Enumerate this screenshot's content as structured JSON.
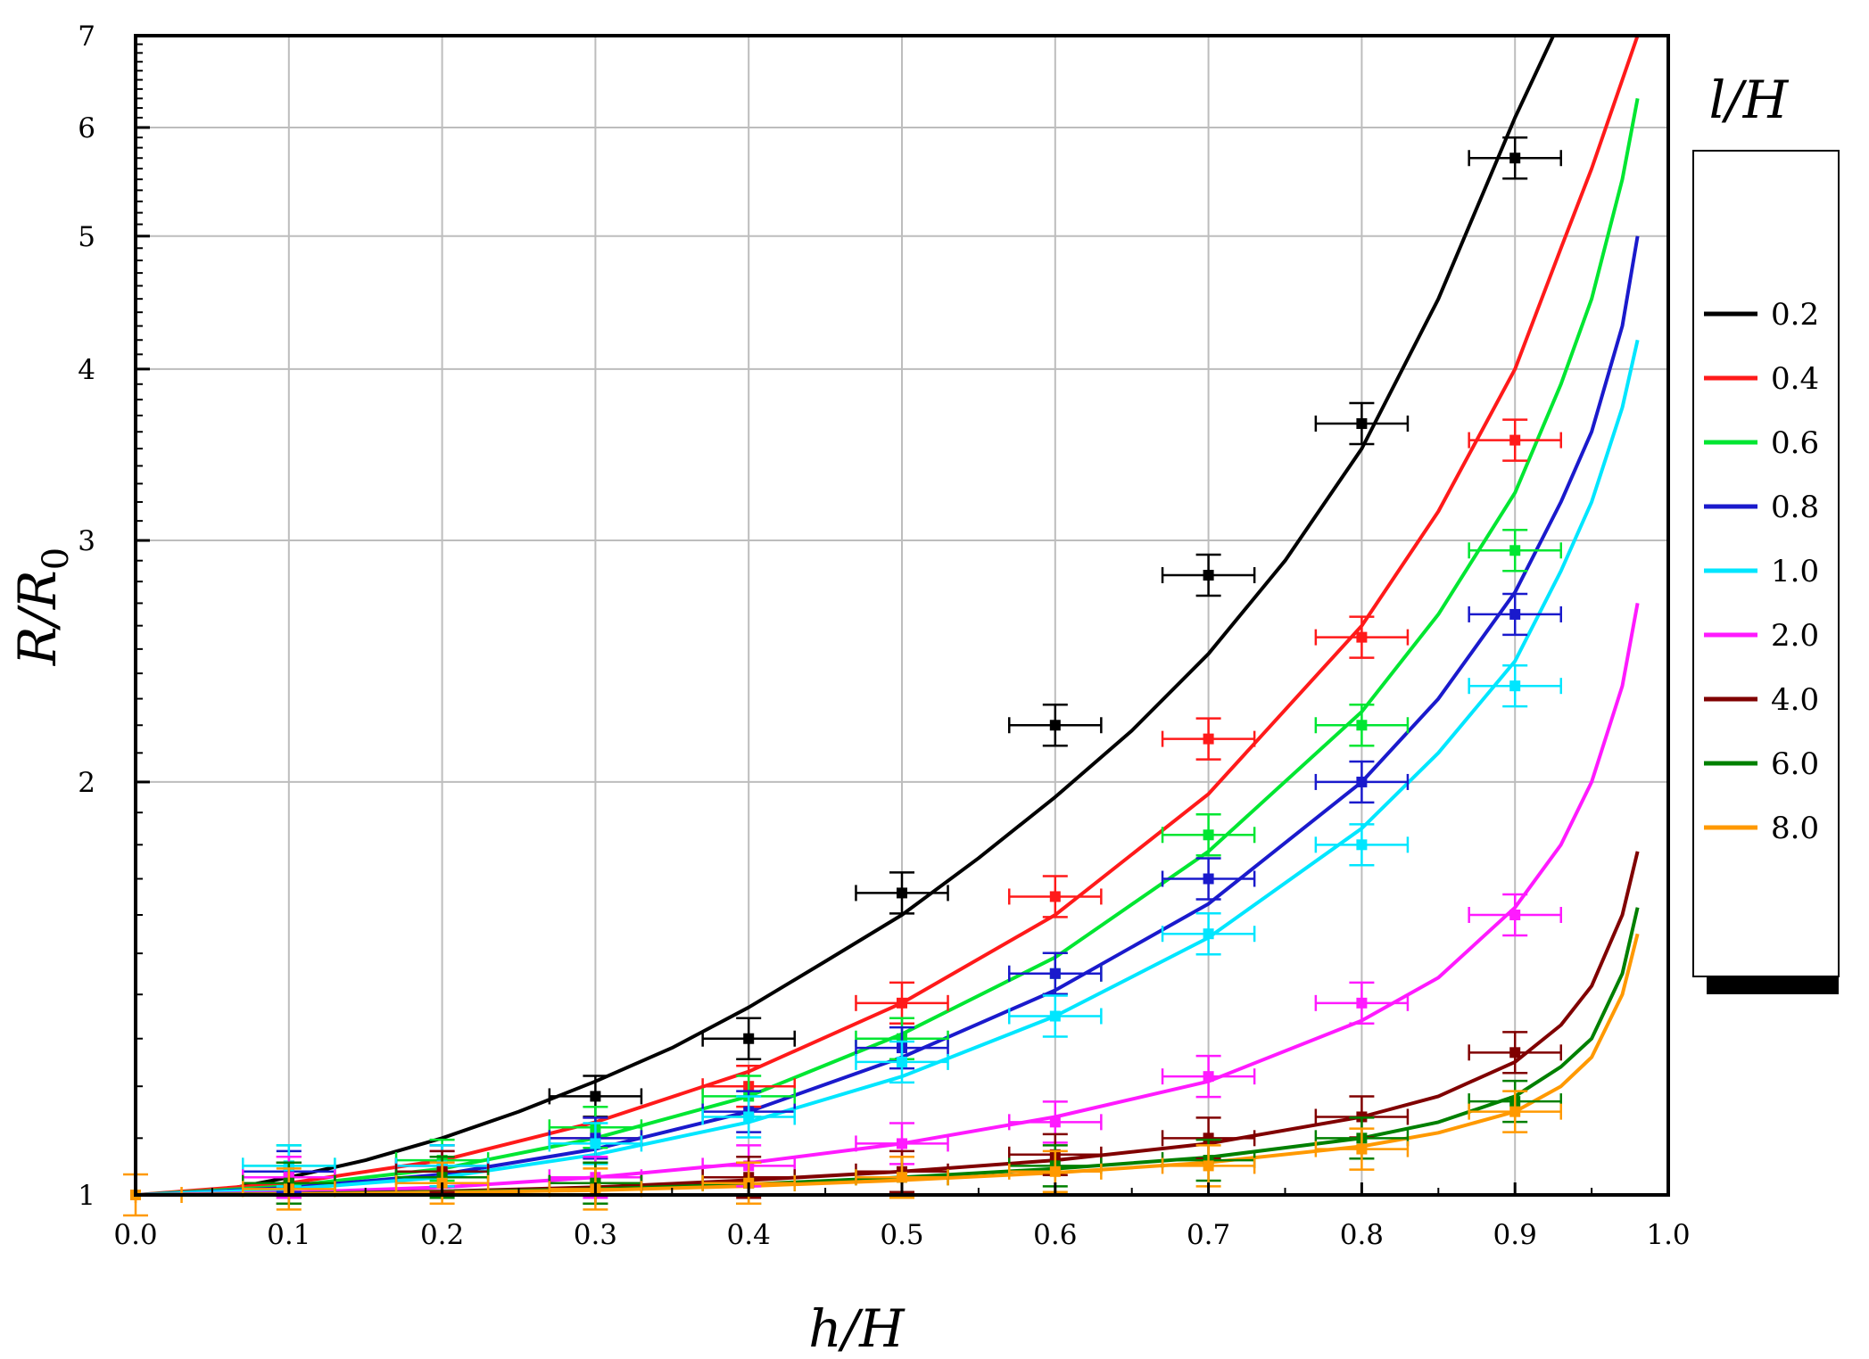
{
  "chart_data": {
    "type": "line",
    "xlabel_main": "h/H",
    "ylabel_main": "R/R",
    "ylabel_sub": "0",
    "legend_title": "l/H",
    "xlim": [
      0.0,
      1.0
    ],
    "ylim": [
      1,
      7
    ],
    "y_scale": "log",
    "grid": true,
    "legend_position": "right",
    "x_ticks": [
      "0.0",
      "0.1",
      "0.2",
      "0.3",
      "0.4",
      "0.5",
      "0.6",
      "0.7",
      "0.8",
      "0.9",
      "1.0"
    ],
    "y_ticks": [
      {
        "value": 1,
        "label": "1"
      },
      {
        "value": 2,
        "label": "2"
      },
      {
        "value": 3,
        "label": "3"
      },
      {
        "value": 4,
        "label": "4"
      },
      {
        "value": 5,
        "label": "5"
      },
      {
        "value": 6,
        "label": "6"
      },
      {
        "value": 7,
        "label": "7"
      }
    ],
    "x_error": 0.03,
    "series": [
      {
        "name": "0.2",
        "color": "#000000",
        "curve": {
          "x": [
            0,
            0.05,
            0.1,
            0.15,
            0.2,
            0.25,
            0.3,
            0.35,
            0.4,
            0.45,
            0.5,
            0.55,
            0.6,
            0.65,
            0.7,
            0.75,
            0.8,
            0.85,
            0.9,
            0.925
          ],
          "y": [
            1.0,
            1.005,
            1.03,
            1.06,
            1.1,
            1.15,
            1.21,
            1.28,
            1.37,
            1.48,
            1.6,
            1.76,
            1.95,
            2.18,
            2.48,
            2.9,
            3.5,
            4.5,
            6.1,
            7.0
          ]
        },
        "points": {
          "x": [
            0.1,
            0.3,
            0.4,
            0.5,
            0.6,
            0.7,
            0.8,
            0.9
          ],
          "y": [
            1.02,
            1.18,
            1.3,
            1.66,
            2.2,
            2.83,
            3.65,
            5.7
          ]
        }
      },
      {
        "name": "0.4",
        "color": "#ff1a1a",
        "curve": {
          "x": [
            0,
            0.1,
            0.2,
            0.3,
            0.4,
            0.5,
            0.6,
            0.7,
            0.8,
            0.85,
            0.9,
            0.93,
            0.95,
            0.97,
            0.98
          ],
          "y": [
            1.0,
            1.02,
            1.06,
            1.13,
            1.23,
            1.38,
            1.6,
            1.96,
            2.6,
            3.15,
            4.0,
            4.9,
            5.6,
            6.5,
            7.0
          ]
        },
        "points": {
          "x": [
            0.1,
            0.2,
            0.3,
            0.4,
            0.5,
            0.6,
            0.7,
            0.8,
            0.9
          ],
          "y": [
            1.03,
            1.05,
            1.1,
            1.2,
            1.38,
            1.65,
            2.15,
            2.55,
            3.55
          ]
        }
      },
      {
        "name": "0.6",
        "color": "#00e632",
        "curve": {
          "x": [
            0,
            0.1,
            0.2,
            0.3,
            0.4,
            0.5,
            0.6,
            0.7,
            0.8,
            0.85,
            0.9,
            0.93,
            0.95,
            0.97,
            0.98
          ],
          "y": [
            1.0,
            1.015,
            1.045,
            1.1,
            1.18,
            1.31,
            1.49,
            1.78,
            2.25,
            2.65,
            3.25,
            3.9,
            4.5,
            5.5,
            6.3
          ]
        },
        "points": {
          "x": [
            0.1,
            0.2,
            0.3,
            0.4,
            0.5,
            0.6,
            0.7,
            0.8,
            0.9
          ],
          "y": [
            1.05,
            1.06,
            1.12,
            1.18,
            1.3,
            1.45,
            1.83,
            2.2,
            2.95
          ]
        }
      },
      {
        "name": "0.8",
        "color": "#1a1acc",
        "curve": {
          "x": [
            0,
            0.1,
            0.2,
            0.3,
            0.4,
            0.5,
            0.6,
            0.7,
            0.8,
            0.85,
            0.9,
            0.93,
            0.95,
            0.97,
            0.98
          ],
          "y": [
            1.0,
            1.012,
            1.035,
            1.08,
            1.15,
            1.26,
            1.41,
            1.63,
            2.0,
            2.3,
            2.75,
            3.2,
            3.6,
            4.3,
            5.0
          ]
        },
        "points": {
          "x": [
            0.1,
            0.2,
            0.3,
            0.4,
            0.5,
            0.6,
            0.7,
            0.8,
            0.9
          ],
          "y": [
            1.04,
            1.05,
            1.1,
            1.15,
            1.28,
            1.45,
            1.7,
            2.0,
            2.65
          ]
        }
      },
      {
        "name": "1.0",
        "color": "#00e6ff",
        "curve": {
          "x": [
            0,
            0.1,
            0.2,
            0.3,
            0.4,
            0.5,
            0.6,
            0.7,
            0.8,
            0.85,
            0.9,
            0.93,
            0.95,
            0.97,
            0.98
          ],
          "y": [
            1.0,
            1.01,
            1.03,
            1.07,
            1.13,
            1.22,
            1.35,
            1.54,
            1.85,
            2.1,
            2.45,
            2.85,
            3.2,
            3.75,
            4.2
          ]
        },
        "points": {
          "x": [
            0.1,
            0.2,
            0.3,
            0.4,
            0.5,
            0.6,
            0.7,
            0.8,
            0.9
          ],
          "y": [
            1.05,
            1.05,
            1.09,
            1.14,
            1.25,
            1.35,
            1.55,
            1.8,
            2.35
          ]
        }
      },
      {
        "name": "2.0",
        "color": "#ff1aff",
        "curve": {
          "x": [
            0,
            0.1,
            0.2,
            0.3,
            0.4,
            0.5,
            0.6,
            0.7,
            0.8,
            0.85,
            0.9,
            0.93,
            0.95,
            0.97,
            0.98
          ],
          "y": [
            1.0,
            1.004,
            1.013,
            1.03,
            1.055,
            1.09,
            1.14,
            1.21,
            1.34,
            1.44,
            1.62,
            1.8,
            2.0,
            2.35,
            2.7
          ]
        },
        "points": {
          "x": [
            0.1,
            0.2,
            0.3,
            0.4,
            0.5,
            0.6,
            0.7,
            0.8,
            0.9
          ],
          "y": [
            1.03,
            1.04,
            1.03,
            1.05,
            1.09,
            1.13,
            1.22,
            1.38,
            1.6
          ]
        }
      },
      {
        "name": "4.0",
        "color": "#800000",
        "curve": {
          "x": [
            0,
            0.1,
            0.2,
            0.3,
            0.4,
            0.5,
            0.6,
            0.7,
            0.8,
            0.85,
            0.9,
            0.93,
            0.95,
            0.97,
            0.98
          ],
          "y": [
            1.0,
            1.002,
            1.006,
            1.013,
            1.025,
            1.04,
            1.06,
            1.09,
            1.14,
            1.18,
            1.25,
            1.33,
            1.42,
            1.6,
            1.78
          ]
        },
        "points": {
          "x": [
            0.1,
            0.2,
            0.3,
            0.4,
            0.5,
            0.6,
            0.7,
            0.8,
            0.9
          ],
          "y": [
            1.02,
            1.04,
            1.02,
            1.03,
            1.04,
            1.07,
            1.1,
            1.14,
            1.27
          ]
        }
      },
      {
        "name": "6.0",
        "color": "#008000",
        "curve": {
          "x": [
            0,
            0.1,
            0.2,
            0.3,
            0.4,
            0.5,
            0.6,
            0.7,
            0.8,
            0.85,
            0.9,
            0.93,
            0.95,
            0.97,
            0.98
          ],
          "y": [
            1.0,
            1.002,
            1.005,
            1.01,
            1.018,
            1.03,
            1.045,
            1.065,
            1.1,
            1.13,
            1.18,
            1.24,
            1.3,
            1.45,
            1.62
          ]
        },
        "points": {
          "x": [
            0.1,
            0.2,
            0.3,
            0.4,
            0.5,
            0.6,
            0.7,
            0.8,
            0.9
          ],
          "y": [
            1.02,
            1.03,
            1.02,
            1.02,
            1.03,
            1.05,
            1.06,
            1.1,
            1.17
          ]
        }
      },
      {
        "name": "8.0",
        "color": "#ff9900",
        "curve": {
          "x": [
            0,
            0.1,
            0.2,
            0.3,
            0.4,
            0.5,
            0.6,
            0.7,
            0.8,
            0.85,
            0.9,
            0.93,
            0.95,
            0.97,
            0.98
          ],
          "y": [
            1.0,
            1.001,
            1.004,
            1.008,
            1.015,
            1.025,
            1.038,
            1.056,
            1.085,
            1.11,
            1.15,
            1.2,
            1.26,
            1.4,
            1.55
          ]
        },
        "points": {
          "x": [
            0.0,
            0.1,
            0.2,
            0.3,
            0.4,
            0.5,
            0.6,
            0.7,
            0.8,
            0.9
          ],
          "y": [
            1.0,
            1.01,
            1.02,
            1.01,
            1.02,
            1.03,
            1.04,
            1.05,
            1.08,
            1.15
          ]
        }
      }
    ]
  }
}
